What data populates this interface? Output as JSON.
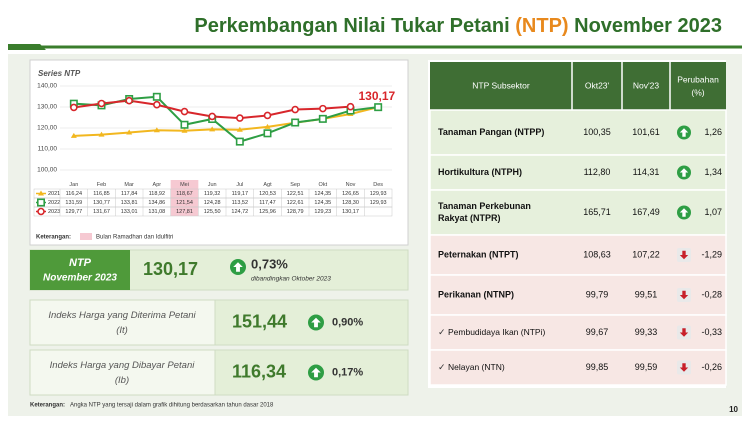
{
  "header": {
    "title_parts": [
      "Perkembangan Nilai Tukar Petani ",
      "(NTP)",
      " November 2023"
    ]
  },
  "chart_data": {
    "type": "line",
    "title": "Series NTP",
    "categories": [
      "Jan",
      "Feb",
      "Mar",
      "Apr",
      "Mei",
      "Jun",
      "Jul",
      "Agt",
      "Sep",
      "Okt",
      "Nov",
      "Des"
    ],
    "series": [
      {
        "name": "2021",
        "color": "#f2b71f",
        "marker": "triangle",
        "values": [
          116.24,
          116.85,
          117.84,
          118.92,
          118.67,
          119.32,
          119.17,
          120.53,
          122.51,
          124.35,
          126.65,
          129.93
        ],
        "value_labels": [
          "116,24",
          "116,85",
          "117,84",
          "118,92",
          "118,67",
          "119,32",
          "119,17",
          "120,53",
          "122,51",
          "124,35",
          "126,65",
          "129,93"
        ]
      },
      {
        "name": "2022",
        "color": "#2e9e44",
        "marker": "square",
        "values": [
          131.59,
          130.77,
          133.81,
          134.86,
          121.54,
          124.28,
          113.52,
          117.47,
          122.61,
          124.35,
          128.3,
          129.93
        ],
        "value_labels": [
          "131,59",
          "130,77",
          "133,81",
          "134,86",
          "121,54",
          "124,28",
          "113,52",
          "117,47",
          "122,61",
          "124,35",
          "128,30",
          "129,93"
        ]
      },
      {
        "name": "2023",
        "color": "#d8262b",
        "marker": "circle",
        "values": [
          129.77,
          131.67,
          133.01,
          131.08,
          127.81,
          125.5,
          124.72,
          125.96,
          128.79,
          129.23,
          130.17,
          null
        ],
        "value_labels": [
          "129,77",
          "131,67",
          "133,01",
          "131,08",
          "127,81",
          "125,50",
          "124,72",
          "125,96",
          "128,79",
          "129,23",
          "130,17",
          null
        ]
      }
    ],
    "ylim": [
      100,
      140
    ],
    "yticks": [
      {
        "value": 100,
        "label": "100,00"
      },
      {
        "value": 110,
        "label": "110,00"
      },
      {
        "value": 120,
        "label": "120,00"
      },
      {
        "value": 130,
        "label": "130,00"
      },
      {
        "value": 140,
        "label": "140,00"
      }
    ],
    "grid": true,
    "annotation": {
      "value": 130.17,
      "label": "130,17"
    },
    "note_label": "Keterangan:",
    "note_text": "Bulan Ramadhan dan Idulfitri"
  },
  "stats": [
    {
      "label": [
        "NTP",
        "November 2023"
      ],
      "value": "130,17",
      "change": "0,73%",
      "compare": "dibandingkan Oktober 2023"
    },
    {
      "label": [
        "Indeks Harga yang Diterima Petani",
        "(It)"
      ],
      "value": "151,44",
      "change": "0,90%"
    },
    {
      "label": [
        "Indeks Harga yang Dibayar Petani",
        "(Ib)"
      ],
      "value": "116,34",
      "change": "0,17%"
    }
  ],
  "footnote": {
    "label": "Keterangan:",
    "text": "Angka NTP yang tersaji dalam grafik dihitung berdasarkan tahun dasar 2018"
  },
  "page_number": "10",
  "table": {
    "headers": [
      "NTP Subsektor",
      "Okt23'",
      "Nov'23",
      [
        "Perubahan",
        "(%)"
      ]
    ],
    "rows": [
      [
        [
          "Tanaman Pangan (NTPP)"
        ],
        "100,35",
        "101,61",
        "1,26"
      ],
      [
        [
          "Hortikultura (NTPH)"
        ],
        "112,80",
        "114,31",
        "1,34"
      ],
      [
        [
          "Tanaman Perkebunan",
          "Rakyat (NTPR)"
        ],
        "165,71",
        "167,49",
        "1,07"
      ],
      [
        [
          "Peternakan (NTPT)"
        ],
        "108,63",
        "107,22",
        "-1,29"
      ],
      [
        [
          "Perikanan (NTNP)"
        ],
        "99,79",
        "99,51",
        "-0,28"
      ],
      [
        [
          "Pembudidaya Ikan (NTPi)"
        ],
        "99,67",
        "99,33",
        "-0,33"
      ],
      [
        [
          "Nelayan (NTN)"
        ],
        "99,85",
        "99,59",
        "-0,26"
      ]
    ]
  }
}
